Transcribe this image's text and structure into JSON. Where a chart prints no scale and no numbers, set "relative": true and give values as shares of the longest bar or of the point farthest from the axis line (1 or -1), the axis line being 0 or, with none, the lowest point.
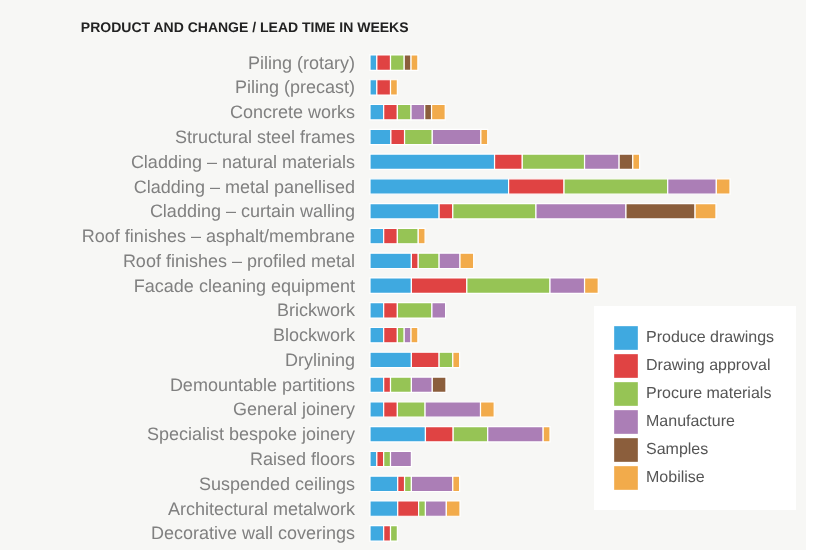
{
  "chart_data": {
    "type": "bar",
    "orientation": "horizontal",
    "stacked": true,
    "relative": true,
    "title": "PRODUCT AND CHANGE  /  LEAD TIME IN WEEKS",
    "categories": [
      "Piling (rotary)",
      "Piling (precast)",
      "Concrete works",
      "Structural steel frames",
      "Cladding – natural materials",
      "Cladding – metal panellised",
      "Cladding – curtain walling",
      "Roof finishes – asphalt/membrane",
      "Roof finishes – profiled metal",
      "Facade cleaning equipment",
      "Brickwork",
      "Blockwork",
      "Drylining",
      "Demountable partitions",
      "General joinery",
      "Specialist bespoke joinery",
      "Raised floors",
      "Suspended ceilings",
      "Architectural metalwork",
      "Decorative wall coverings"
    ],
    "series": [
      {
        "name": "Produce drawings",
        "color": "#3fa9e0",
        "values": [
          0.019,
          0.019,
          0.038,
          0.058,
          0.346,
          0.385,
          0.192,
          0.038,
          0.115,
          0.115,
          0.038,
          0.038,
          0.115,
          0.038,
          0.038,
          0.154,
          0.019,
          0.077,
          0.077,
          0.038
        ]
      },
      {
        "name": "Drawing approval",
        "color": "#e04343",
        "values": [
          0.038,
          0.038,
          0.038,
          0.038,
          0.077,
          0.154,
          0.038,
          0.038,
          0.019,
          0.154,
          0.038,
          0.038,
          0.077,
          0.019,
          0.038,
          0.077,
          0.019,
          0.019,
          0.058,
          0.019
        ]
      },
      {
        "name": "Procure materials",
        "color": "#96c455",
        "values": [
          0.038,
          null,
          0.038,
          0.077,
          0.173,
          0.288,
          0.231,
          0.058,
          0.058,
          0.231,
          0.096,
          0.019,
          0.038,
          0.058,
          0.077,
          0.096,
          0.019,
          0.019,
          0.019,
          0.019
        ]
      },
      {
        "name": "Manufacture",
        "color": "#ab7eb6",
        "values": [
          null,
          null,
          0.038,
          0.135,
          0.096,
          0.135,
          0.25,
          null,
          0.058,
          0.096,
          0.038,
          0.019,
          null,
          0.058,
          0.154,
          0.154,
          0.058,
          0.115,
          0.058,
          null
        ]
      },
      {
        "name": "Samples",
        "color": "#8b5e3c",
        "values": [
          0.019,
          null,
          0.019,
          null,
          0.038,
          null,
          0.192,
          null,
          null,
          null,
          null,
          null,
          null,
          0.038,
          null,
          null,
          null,
          null,
          null,
          null
        ]
      },
      {
        "name": "Mobilise",
        "color": "#f2ab4b",
        "values": [
          0.019,
          0.019,
          0.038,
          0.019,
          0.019,
          0.038,
          0.058,
          0.019,
          0.038,
          0.038,
          null,
          0.019,
          0.019,
          null,
          0.038,
          0.019,
          null,
          0.019,
          0.038,
          null
        ]
      }
    ],
    "legend": "bottom right"
  }
}
